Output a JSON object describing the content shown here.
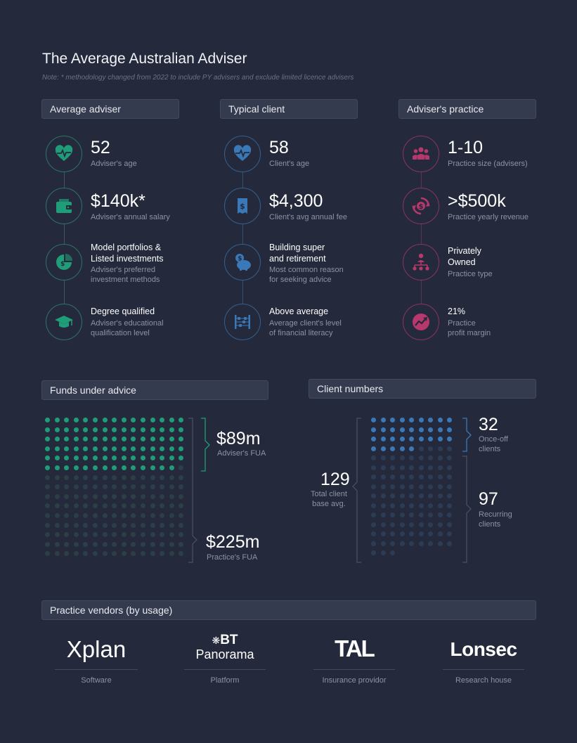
{
  "title": "The Average Australian Adviser",
  "note": "Note: * methodology changed from 2022 to include PY advisers and exclude limited licence advisers",
  "colors": {
    "background": "#242a3b",
    "teal": "#1f9d78",
    "blue": "#3a78b7",
    "red": "#b8386d",
    "dim": "#2c3f46"
  },
  "adviser": {
    "header": "Average adviser",
    "items": [
      {
        "icon": "heartbeat-icon",
        "value": "52",
        "label": "Adviser's age"
      },
      {
        "icon": "wallet-icon",
        "value": "$140k*",
        "label": "Adviser's annual salary"
      },
      {
        "icon": "pie-chart-money-icon",
        "value_line1": "Model portfolios &",
        "value_line2": "Listed investments",
        "label_line1": "Adviser's preferred",
        "label_line2": "investment methods"
      },
      {
        "icon": "graduation-cap-icon",
        "value": "Degree qualified",
        "label_line1": "Adviser's educational",
        "label_line2": "qualification level"
      }
    ]
  },
  "client": {
    "header": "Typical client",
    "items": [
      {
        "icon": "heartbeat-icon",
        "value": "58",
        "label": "Client's age"
      },
      {
        "icon": "invoice-dollar-icon",
        "value": "$4,300",
        "label": "Client's avg annual fee"
      },
      {
        "icon": "piggy-bank-icon",
        "value_line1": "Building super",
        "value_line2": "and retirement",
        "label_line1": "Most common reason",
        "label_line2": "for seeking advice"
      },
      {
        "icon": "abacus-icon",
        "value": "Above average",
        "label_line1": "Average client's level",
        "label_line2": "of financial literacy"
      }
    ]
  },
  "practice": {
    "header": "Adviser's practice",
    "items": [
      {
        "icon": "group-icon",
        "value": "1-10",
        "label": "Practice size (advisers)"
      },
      {
        "icon": "dollar-cycle-icon",
        "value": ">$500k",
        "label": "Practice yearly revenue"
      },
      {
        "icon": "org-chart-icon",
        "value_line1": "Privately",
        "value_line2": "Owned",
        "label": "Practice type"
      },
      {
        "icon": "trend-up-icon",
        "value": "21%",
        "label_line1": "Practice",
        "label_line2": "profit margin"
      }
    ]
  },
  "funds": {
    "header": "Funds under advice",
    "adviser_value": "$89m",
    "adviser_label": "Adviser's FUA",
    "practice_value": "$225m",
    "practice_label": "Practice's FUA",
    "adviser_fraction": 0.396
  },
  "clients": {
    "header": "Client numbers",
    "total_value": "129",
    "total_label_line1": "Total client",
    "total_label_line2": "base avg.",
    "onceoff_value": "32",
    "onceoff_label_line1": "Once-off",
    "onceoff_label_line2": "clients",
    "recurring_value": "97",
    "recurring_label_line1": "Recurring",
    "recurring_label_line2": "clients",
    "total": 129,
    "onceoff": 32
  },
  "vendors": {
    "header": "Practice vendors (by usage)",
    "items": [
      {
        "logo": "Xplan",
        "label": "Software"
      },
      {
        "logo_top": "BT",
        "logo_bottom": "Panorama",
        "label": "Platform"
      },
      {
        "logo": "TAL",
        "label": "Insurance providor"
      },
      {
        "logo": "Lonsec",
        "label": "Research house"
      }
    ]
  }
}
